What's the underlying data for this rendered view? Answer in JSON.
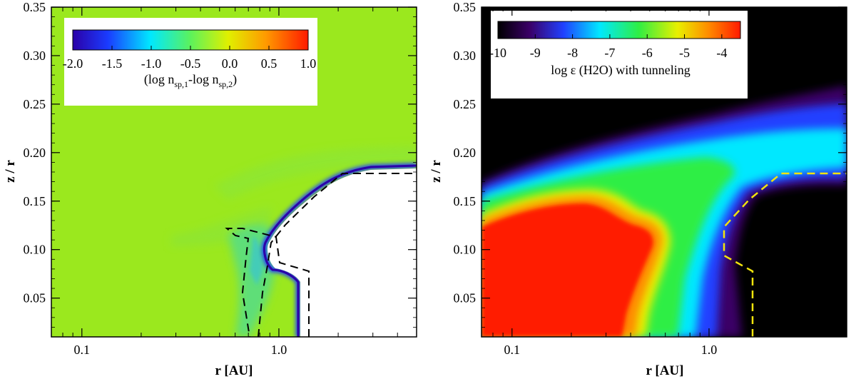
{
  "chart_data": [
    {
      "type": "heatmap",
      "panel": "left",
      "title": "",
      "xlabel": "r [AU]",
      "ylabel": "z / r",
      "xscale": "log",
      "xlim": [
        0.07,
        5.0
      ],
      "ylim": [
        0.01,
        0.35
      ],
      "xticks": [
        {
          "value": 0.1,
          "label": "0.1"
        },
        {
          "value": 1.0,
          "label": "1.0"
        }
      ],
      "yticks": [
        0.05,
        0.1,
        0.15,
        0.2,
        0.25,
        0.3,
        0.35
      ],
      "ytick_labels": [
        "0.05",
        "0.10",
        "0.15",
        "0.20",
        "0.25",
        "0.30",
        "0.35"
      ],
      "colorbar": {
        "range": [
          -2.0,
          1.0
        ],
        "ticks": [
          "-2.0",
          "-1.5",
          "-1.0",
          "-0.5",
          "0.0",
          "0.5",
          "1.0"
        ],
        "label_main": "(log n",
        "label_sub1": "sp,1",
        "label_mid": "-log n",
        "label_sub2": "sp,2",
        "label_end": ")"
      },
      "background_value": -0.3,
      "colors": {
        "background": "#9BE81E",
        "contour": "#000000",
        "empty": "#ffffff"
      },
      "empty_region_boundary": [
        [
          1.3,
          0.01
        ],
        [
          1.3,
          0.09
        ],
        [
          1.1,
          0.088
        ],
        [
          0.88,
          0.1
        ],
        [
          0.88,
          0.115
        ],
        [
          1.0,
          0.13
        ],
        [
          1.4,
          0.16
        ],
        [
          2.2,
          0.185
        ],
        [
          5.0,
          0.19
        ]
      ],
      "dashed_contour": [
        [
          1.5,
          0.01
        ],
        [
          1.5,
          0.088
        ],
        [
          1.0,
          0.093
        ],
        [
          0.93,
          0.12
        ],
        [
          0.72,
          0.125
        ],
        [
          0.58,
          0.127
        ],
        [
          0.62,
          0.115
        ],
        [
          0.72,
          0.108
        ],
        [
          0.7,
          0.07
        ],
        [
          0.68,
          0.04
        ],
        [
          0.73,
          0.01
        ]
      ],
      "dashed_contour_2": [
        [
          0.78,
          0.01
        ],
        [
          0.82,
          0.06
        ],
        [
          0.86,
          0.09
        ],
        [
          0.95,
          0.115
        ],
        [
          1.25,
          0.15
        ],
        [
          2.1,
          0.185
        ],
        [
          5.0,
          0.185
        ]
      ]
    },
    {
      "type": "heatmap",
      "panel": "right",
      "title": "",
      "xlabel": "r [AU]",
      "ylabel": "z / r",
      "xscale": "log",
      "xlim": [
        0.07,
        5.0
      ],
      "ylim": [
        0.01,
        0.35
      ],
      "xticks": [
        {
          "value": 0.1,
          "label": "0.1"
        },
        {
          "value": 1.0,
          "label": "1.0"
        }
      ],
      "yticks": [
        0.05,
        0.1,
        0.15,
        0.2,
        0.25,
        0.3,
        0.35
      ],
      "ytick_labels": [
        "0.05",
        "0.10",
        "0.15",
        "0.20",
        "0.25",
        "0.30",
        "0.35"
      ],
      "colorbar": {
        "range": [
          -10,
          -3.5
        ],
        "ticks": [
          "-10",
          "-9",
          "-8",
          "-7",
          "-6",
          "-5",
          "-4"
        ],
        "label": "log ε (H2O) with tunneling"
      },
      "colors": {
        "background": "#000000",
        "contour": "#F2E40C"
      },
      "dashed_contour": [
        [
          1.6,
          0.01
        ],
        [
          1.6,
          0.08
        ],
        [
          1.2,
          0.095
        ],
        [
          1.15,
          0.115
        ],
        [
          1.4,
          0.15
        ],
        [
          2.2,
          0.178
        ],
        [
          5.0,
          0.178
        ]
      ]
    }
  ]
}
